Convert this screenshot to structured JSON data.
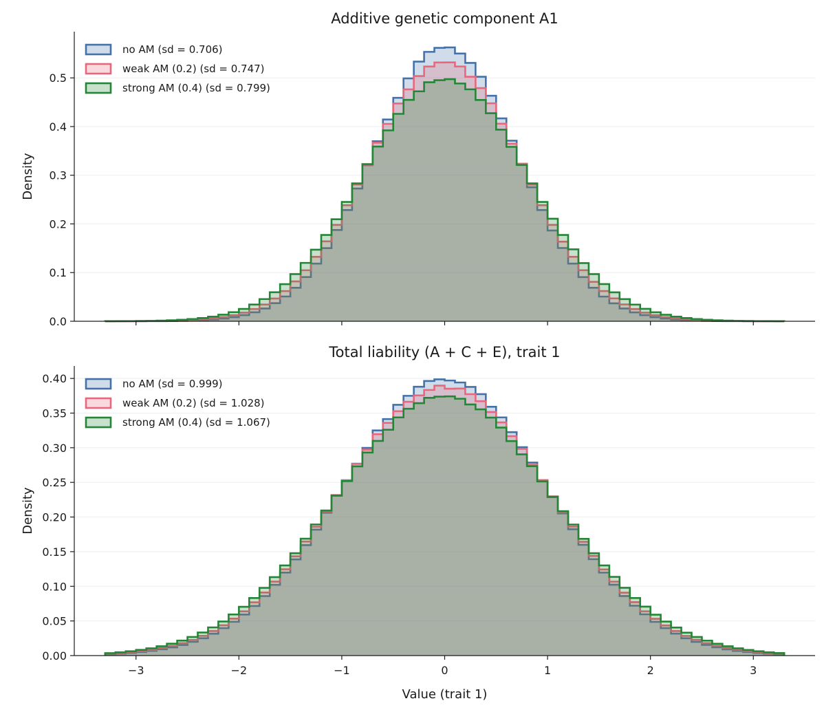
{
  "chart_data": [
    {
      "type": "histogram",
      "title": "Additive genetic component A1",
      "xlabel": "",
      "ylabel": "Density",
      "xlim": [
        -3.6,
        3.6
      ],
      "ylim": [
        0,
        0.595
      ],
      "yticks": [
        0.0,
        0.1,
        0.2,
        0.3,
        0.4,
        0.5
      ],
      "ytick_labels": [
        "0.0",
        "0.1",
        "0.2",
        "0.3",
        "0.4",
        "0.5"
      ],
      "xticks": [
        -3,
        -2,
        -1,
        0,
        1,
        2,
        3
      ],
      "show_xtick_labels": false,
      "grid": "horizontal, faint",
      "legend": "top-left",
      "bin_range": [
        -3.3,
        3.3
      ],
      "series": [
        {
          "name": "no AM  (sd = 0.706)",
          "sd": 0.706,
          "mean": 0.0,
          "color": "#4472a8"
        },
        {
          "name": "weak AM (0.2)  (sd = 0.747)",
          "sd": 0.747,
          "mean": 0.0,
          "color": "#e8677c"
        },
        {
          "name": "strong AM (0.4)  (sd = 0.799)",
          "sd": 0.799,
          "mean": 0.0,
          "color": "#238636"
        }
      ]
    },
    {
      "type": "histogram",
      "title": "Total liability (A + C + E), trait 1",
      "xlabel": "Value (trait 1)",
      "ylabel": "Density",
      "xlim": [
        -3.6,
        3.6
      ],
      "ylim": [
        0,
        0.418
      ],
      "yticks": [
        0.0,
        0.05,
        0.1,
        0.15,
        0.2,
        0.25,
        0.3,
        0.35,
        0.4
      ],
      "ytick_labels": [
        "0.00",
        "0.05",
        "0.10",
        "0.15",
        "0.20",
        "0.25",
        "0.30",
        "0.35",
        "0.40"
      ],
      "xticks": [
        -3,
        -2,
        -1,
        0,
        1,
        2,
        3
      ],
      "xtick_labels": [
        "−3",
        "−2",
        "−1",
        "0",
        "1",
        "2",
        "3"
      ],
      "show_xtick_labels": true,
      "grid": "horizontal, faint",
      "legend": "top-left",
      "bin_range": [
        -3.3,
        3.3
      ],
      "series": [
        {
          "name": "no AM  (sd = 0.999)",
          "sd": 0.999,
          "mean": 0.0,
          "color": "#4472a8"
        },
        {
          "name": "weak AM (0.2)  (sd = 1.028)",
          "sd": 1.028,
          "mean": 0.0,
          "color": "#e8677c"
        },
        {
          "name": "strong AM (0.4)  (sd = 1.067)",
          "sd": 1.067,
          "mean": 0.0,
          "color": "#238636"
        }
      ]
    }
  ]
}
